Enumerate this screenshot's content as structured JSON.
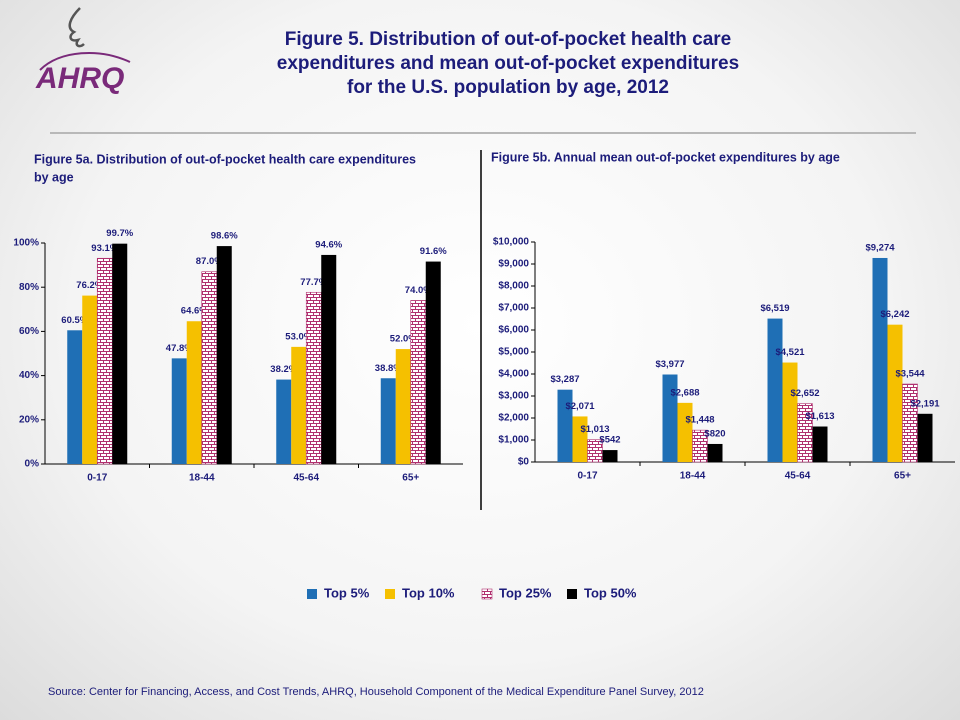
{
  "logo": "AHRQ",
  "title_lines": [
    "Figure 5. Distribution of out-of-pocket health care",
    "expenditures and mean out-of-pocket expenditures",
    "for the U.S. population by age, 2012"
  ],
  "chart_data": [
    {
      "type": "bar",
      "title_lines": [
        "Figure 5a. Distribution of out-of-pocket health care expenditures",
        "by age"
      ],
      "categories": [
        "0-17",
        "18-44",
        "45-64",
        "65+"
      ],
      "ylim": [
        0,
        100
      ],
      "yticks": [
        {
          "value": 0,
          "label": "0%"
        },
        {
          "value": 20,
          "label": "20%"
        },
        {
          "value": 40,
          "label": "40%"
        },
        {
          "value": 60,
          "label": "60%"
        },
        {
          "value": 80,
          "label": "80%"
        },
        {
          "value": 100,
          "label": "100%"
        }
      ],
      "series": [
        {
          "name": "Top 5%",
          "color": "#1f6fb5",
          "values": [
            60.5,
            47.8,
            38.2,
            38.8
          ],
          "value_labels": [
            "60.5%",
            "47.8%",
            "38.2%",
            "38.8%"
          ]
        },
        {
          "name": "Top 10%",
          "color": "#f5c000",
          "values": [
            76.2,
            64.6,
            53.0,
            52.0
          ],
          "value_labels": [
            "76.2%",
            "64.6%",
            "53.0%",
            "52.0%"
          ]
        },
        {
          "name": "Top 25%",
          "color": "#b0306e",
          "pattern": "brick",
          "values": [
            93.1,
            87.0,
            77.7,
            74.0
          ],
          "value_labels": [
            "93.1%",
            "87.0%",
            "77.7%",
            "74.0%"
          ]
        },
        {
          "name": "Top 50%",
          "color": "#000000",
          "values": [
            99.7,
            98.6,
            94.6,
            91.6
          ],
          "value_labels": [
            "99.7%",
            "98.6%",
            "94.6%",
            "91.6%"
          ]
        }
      ]
    },
    {
      "type": "bar",
      "title_lines": [
        "Figure 5b. Annual mean out-of-pocket expenditures by age"
      ],
      "categories": [
        "0-17",
        "18-44",
        "45-64",
        "65+"
      ],
      "ylim": [
        0,
        10000
      ],
      "yticks": [
        {
          "value": 0,
          "label": "$0"
        },
        {
          "value": 1000,
          "label": "$1,000"
        },
        {
          "value": 2000,
          "label": "$2,000"
        },
        {
          "value": 3000,
          "label": "$3,000"
        },
        {
          "value": 4000,
          "label": "$4,000"
        },
        {
          "value": 5000,
          "label": "$5,000"
        },
        {
          "value": 6000,
          "label": "$6,000"
        },
        {
          "value": 7000,
          "label": "$7,000"
        },
        {
          "value": 8000,
          "label": "$8,000"
        },
        {
          "value": 9000,
          "label": "$9,000"
        },
        {
          "value": 10000,
          "label": "$10,000"
        }
      ],
      "series": [
        {
          "color": "#1f6fb5",
          "values": [
            3287,
            3977,
            6519,
            9274
          ],
          "value_labels": [
            "$3,287",
            "$3,977",
            "$6,519",
            "$9,274"
          ]
        },
        {
          "color": "#f5c000",
          "values": [
            2071,
            2688,
            4521,
            6242
          ],
          "value_labels": [
            "$2,071",
            "$2,688",
            "$4,521",
            "$6,242"
          ]
        },
        {
          "color": "#b0306e",
          "pattern": "brick",
          "values": [
            1013,
            1448,
            2652,
            3544
          ],
          "value_labels": [
            "$1,013",
            "$1,448",
            "$2,652",
            "$3,544"
          ]
        },
        {
          "color": "#000000",
          "values": [
            542,
            820,
            1613,
            2191
          ],
          "value_labels": [
            "$542",
            "$820",
            "$1,613",
            "$2,191"
          ]
        }
      ]
    }
  ],
  "source": "Source: Center for Financing, Access, and Cost Trends, AHRQ, Household Component of the Medical Expenditure Panel Survey, 2012"
}
